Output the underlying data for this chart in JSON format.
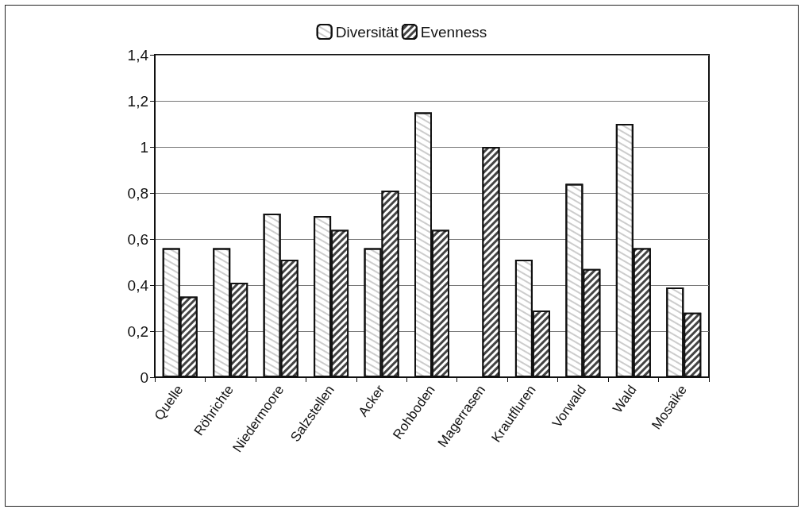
{
  "chart_data": {
    "type": "bar",
    "categories": [
      "Quelle",
      "Röhrichte",
      "Niedermoore",
      "Salzstellen",
      "Acker",
      "Rohboden",
      "Magerrasen",
      "Krautfluren",
      "Vorwald",
      "Wald",
      "Mosaike"
    ],
    "series": [
      {
        "name": "Diversität",
        "color": "#ffffff",
        "values": [
          0.56,
          0.56,
          0.71,
          0.7,
          0.56,
          1.15,
          null,
          0.51,
          0.84,
          1.1,
          0.39
        ]
      },
      {
        "name": "Evenness",
        "color": "#444444",
        "values": [
          0.35,
          0.41,
          0.51,
          0.64,
          0.81,
          0.64,
          1.0,
          0.29,
          0.47,
          0.56,
          0.28
        ]
      }
    ],
    "ylim": [
      0,
      1.4
    ],
    "yticks": [
      0,
      {
        "value": 0.2,
        "label": "0,2"
      },
      {
        "value": 0.4,
        "label": "0,4"
      },
      {
        "value": 0.6,
        "label": "0,6"
      },
      {
        "value": 0.8,
        "label": "0,8"
      },
      1,
      {
        "value": 1.2,
        "label": "1,2"
      },
      {
        "value": 1.4,
        "label": "1,4"
      }
    ],
    "grid": "y",
    "legend": "top"
  }
}
